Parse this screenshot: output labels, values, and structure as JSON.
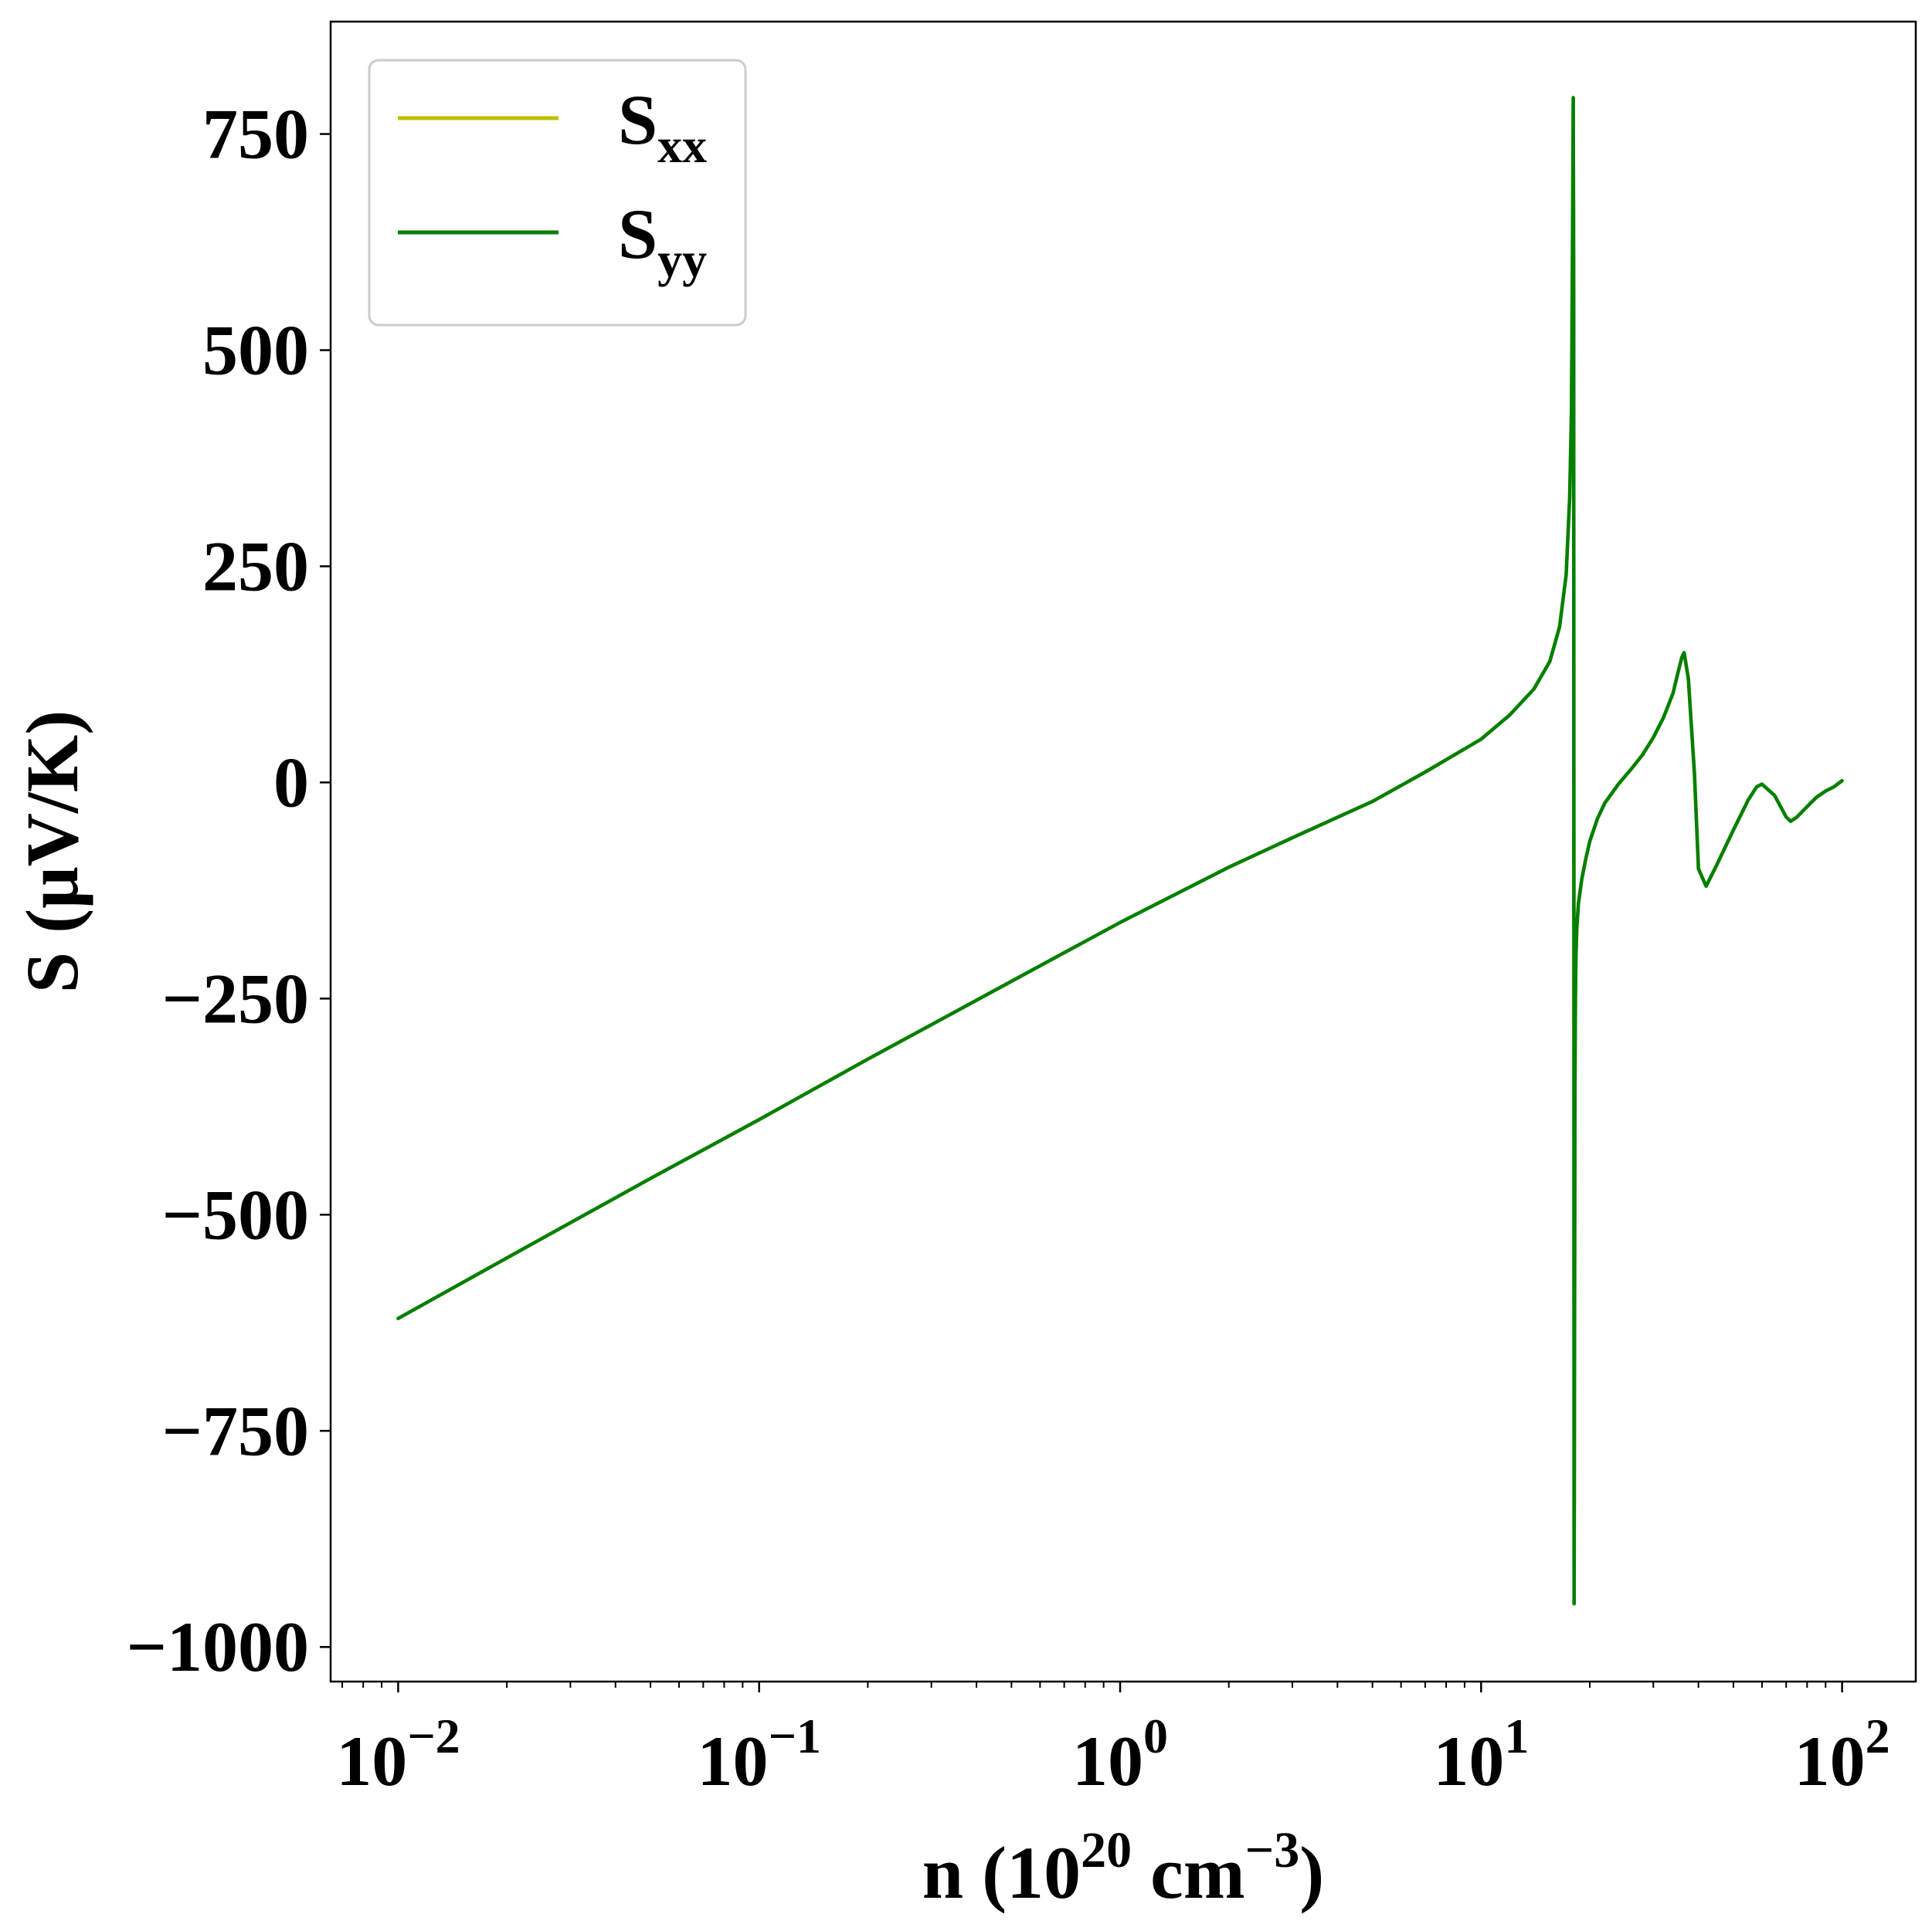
{
  "chart_data": {
    "type": "line",
    "xscale": "log",
    "xlim": [
      0.0065,
      160
    ],
    "ylim": [
      -1040,
      880
    ],
    "xticks": [
      {
        "value": 0.01,
        "base": "10",
        "exp": "−2"
      },
      {
        "value": 0.1,
        "base": "10",
        "exp": "−1"
      },
      {
        "value": 1,
        "base": "10",
        "exp": "0"
      },
      {
        "value": 10,
        "base": "10",
        "exp": "1"
      },
      {
        "value": 100,
        "base": "10",
        "exp": "2"
      }
    ],
    "yticks": [
      {
        "value": 750,
        "label": "750"
      },
      {
        "value": 500,
        "label": "500"
      },
      {
        "value": 250,
        "label": "250"
      },
      {
        "value": 0,
        "label": "0"
      },
      {
        "value": -250,
        "label": "−250"
      },
      {
        "value": -500,
        "label": "−500"
      },
      {
        "value": -750,
        "label": "−750"
      },
      {
        "value": -1000,
        "label": "−1000"
      }
    ],
    "xlabel": {
      "pre": "n (10",
      "sup1": "20",
      "mid": " cm",
      "sup2": "−3",
      "post": ")"
    },
    "ylabel": "S (μV/K)",
    "legend_position": "upper-left",
    "grid": false,
    "series": [
      {
        "name_base": "S",
        "name_sub": "xx",
        "color": "#bfbf00",
        "x": [
          0.01,
          0.02,
          0.05,
          0.1,
          0.2,
          0.5,
          1,
          2,
          3,
          5,
          7,
          10,
          12,
          14,
          15.5,
          16.5,
          17.2,
          17.6,
          17.8,
          17.9,
          18.0,
          18.05,
          18.1,
          18.15,
          18.2,
          18.25,
          18.3,
          18.4,
          18.6,
          19,
          19.5,
          20,
          21,
          22,
          24,
          26,
          28,
          30,
          32,
          34,
          35,
          36,
          36.5,
          37.5,
          39,
          40,
          42,
          45,
          50,
          55,
          58,
          60,
          65,
          70,
          72,
          75,
          80,
          85,
          90,
          95,
          100
        ],
        "y": [
          -620,
          -550,
          -458,
          -390,
          -320,
          -230,
          -162,
          -98,
          -64,
          -22,
          12,
          50,
          78,
          108,
          140,
          180,
          240,
          330,
          430,
          600,
          792,
          550,
          -950,
          -620,
          -350,
          -250,
          -205,
          -170,
          -140,
          -112,
          -88,
          -68,
          -42,
          -24,
          -2,
          15,
          32,
          52,
          75,
          103,
          125,
          145,
          150,
          120,
          10,
          -100,
          -120,
          -95,
          -55,
          -20,
          -5,
          -2,
          -15,
          -40,
          -45,
          -40,
          -28,
          -17,
          -10,
          -5,
          2
        ]
      },
      {
        "name_base": "S",
        "name_sub": "yy",
        "color": "#007f00",
        "x": [
          0.01,
          0.02,
          0.05,
          0.1,
          0.2,
          0.5,
          1,
          2,
          3,
          5,
          7,
          10,
          12,
          14,
          15.5,
          16.5,
          17.2,
          17.6,
          17.8,
          17.9,
          18.0,
          18.05,
          18.1,
          18.15,
          18.2,
          18.25,
          18.3,
          18.4,
          18.6,
          19,
          19.5,
          20,
          21,
          22,
          24,
          26,
          28,
          30,
          32,
          34,
          35,
          36,
          36.5,
          37.5,
          39,
          40,
          42,
          45,
          50,
          55,
          58,
          60,
          65,
          70,
          72,
          75,
          80,
          85,
          90,
          95,
          100
        ],
        "y": [
          -620,
          -550,
          -458,
          -390,
          -320,
          -230,
          -162,
          -98,
          -64,
          -22,
          12,
          50,
          78,
          108,
          140,
          180,
          240,
          330,
          430,
          600,
          792,
          550,
          -950,
          -620,
          -350,
          -250,
          -205,
          -170,
          -140,
          -112,
          -88,
          -68,
          -42,
          -24,
          -2,
          15,
          32,
          52,
          75,
          103,
          125,
          145,
          150,
          120,
          10,
          -100,
          -120,
          -95,
          -55,
          -20,
          -5,
          -2,
          -15,
          -40,
          -45,
          -40,
          -28,
          -17,
          -10,
          -5,
          2
        ]
      }
    ]
  }
}
